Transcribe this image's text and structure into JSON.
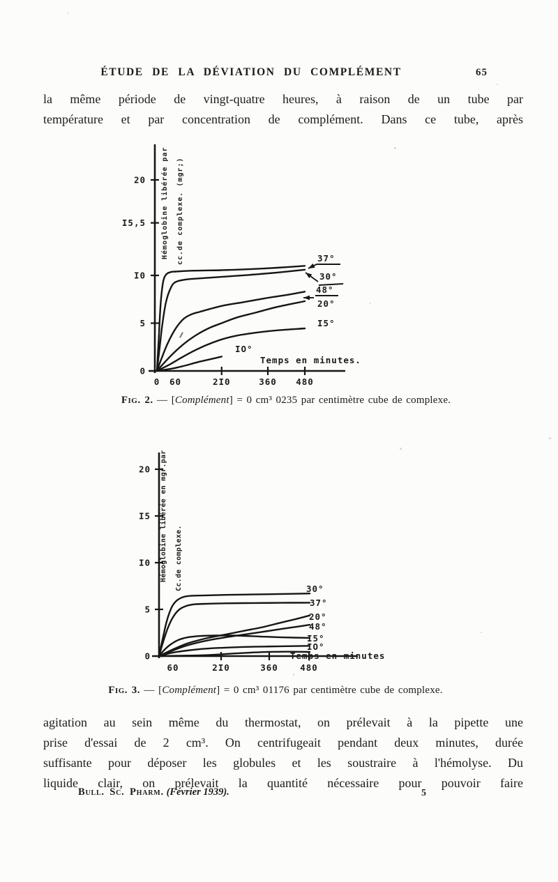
{
  "page": {
    "header": {
      "title": "ÉTUDE DE LA DÉVIATION DU COMPLÉMENT",
      "page_number": "65"
    },
    "paragraph_top": {
      "lines": [
        "la même période de vingt-quatre heures, à raison de un tube par",
        "température et par concentration de complément. Dans ce tube, après"
      ]
    },
    "figure2_caption": {
      "fig_label": "Fig. 2.",
      "pre": " — [",
      "italic_word": "Complément",
      "post": "] = 0 cm³ 0235 par centimètre cube de complexe."
    },
    "figure3_caption": {
      "fig_label": "Fig. 3.",
      "pre": " — [",
      "italic_word": "Complément",
      "post": "] = 0 cm³ 01176 par centimètre cube de complexe."
    },
    "paragraph_bottom": {
      "lines": [
        "agitation au sein même du thermostat, on prélevait à la pipette une",
        "prise d'essai de 2 cm³. On centrifugeait pendant deux minutes, durée",
        "suffisante pour déposer les globules et les soustraire à l'hémolyse. Du",
        "liquide clair, on prélevait la quantité nécessaire pour pouvoir faire"
      ]
    },
    "footer": {
      "journal": "Bull. Sc. Pharm.",
      "issue": "(Février 1939).",
      "page_number": "5"
    }
  },
  "ink_color": "#161616",
  "chart_data": [
    {
      "type": "line",
      "figure": "Fig. 2",
      "ylabel_lines": [
        "Hémoglobine libérée par",
        "cc.de complexe. (mgr;)"
      ],
      "xlabel": "Temps en minutes.",
      "xlim": [
        0,
        480
      ],
      "ylim": [
        0,
        22
      ],
      "grid": false,
      "legend_position": "labels-at-curve-ends",
      "yticks": [
        {
          "label": "20",
          "value": 20
        },
        {
          "label": "I5,5",
          "value": 15.5
        },
        {
          "label": "I0",
          "value": 10
        },
        {
          "label": "5",
          "value": 5
        },
        {
          "label": "0",
          "value": 0
        }
      ],
      "xticks": [
        {
          "label": "0",
          "value": 0,
          "mark": false
        },
        {
          "label": "60",
          "value": 60,
          "mark": false
        },
        {
          "label": "2I0",
          "value": 210,
          "mark": true
        },
        {
          "label": "360",
          "value": 360,
          "mark": true
        },
        {
          "label": "480",
          "value": 480,
          "mark": true
        }
      ],
      "series": [
        {
          "name": "37°",
          "points": [
            [
              0,
              0
            ],
            [
              6,
              3.5
            ],
            [
              12,
              7.0
            ],
            [
              20,
              9.3
            ],
            [
              30,
              10.1
            ],
            [
              45,
              10.35
            ],
            [
              60,
              10.4
            ],
            [
              120,
              10.5
            ],
            [
              210,
              10.55
            ],
            [
              300,
              10.65
            ],
            [
              390,
              10.8
            ],
            [
              480,
              11.0
            ]
          ]
        },
        {
          "name": "30°",
          "points": [
            [
              0,
              0
            ],
            [
              8,
              2.2
            ],
            [
              18,
              5.0
            ],
            [
              30,
              7.3
            ],
            [
              45,
              8.7
            ],
            [
              60,
              9.3
            ],
            [
              90,
              9.55
            ],
            [
              120,
              9.65
            ],
            [
              210,
              9.85
            ],
            [
              300,
              10.05
            ],
            [
              390,
              10.3
            ],
            [
              480,
              10.6
            ]
          ]
        },
        {
          "name": "48°",
          "points": [
            [
              0,
              0
            ],
            [
              15,
              1.3
            ],
            [
              35,
              2.9
            ],
            [
              60,
              4.4
            ],
            [
              85,
              5.4
            ],
            [
              110,
              5.9
            ],
            [
              140,
              6.2
            ],
            [
              210,
              6.8
            ],
            [
              280,
              7.2
            ],
            [
              350,
              7.6
            ],
            [
              420,
              7.95
            ],
            [
              480,
              8.3
            ]
          ]
        },
        {
          "name": "20°",
          "points": [
            [
              0,
              0
            ],
            [
              25,
              0.9
            ],
            [
              55,
              1.9
            ],
            [
              90,
              2.9
            ],
            [
              130,
              3.8
            ],
            [
              170,
              4.5
            ],
            [
              210,
              5.0
            ],
            [
              260,
              5.6
            ],
            [
              320,
              6.1
            ],
            [
              390,
              6.7
            ],
            [
              480,
              7.3
            ]
          ]
        },
        {
          "name": "I5°",
          "points": [
            [
              0,
              0
            ],
            [
              40,
              0.65
            ],
            [
              80,
              1.4
            ],
            [
              120,
              2.1
            ],
            [
              160,
              2.7
            ],
            [
              210,
              3.3
            ],
            [
              260,
              3.7
            ],
            [
              320,
              4.0
            ],
            [
              390,
              4.25
            ],
            [
              480,
              4.45
            ]
          ]
        },
        {
          "name": "IO°",
          "points": [
            [
              0,
              0
            ],
            [
              50,
              0.25
            ],
            [
              90,
              0.55
            ],
            [
              130,
              0.9
            ],
            [
              170,
              1.2
            ],
            [
              210,
              1.5
            ]
          ]
        }
      ]
    },
    {
      "type": "line",
      "figure": "Fig. 3",
      "ylabel_lines": [
        "Hémoglobine libérée en mgr.par",
        "Cc.de complexe."
      ],
      "xlabel": "Temps en minutes",
      "xlim": [
        0,
        480
      ],
      "ylim": [
        0,
        22
      ],
      "grid": false,
      "legend_position": "labels-at-curve-ends",
      "yticks": [
        {
          "label": "20",
          "value": 20
        },
        {
          "label": "I5",
          "value": 15
        },
        {
          "label": "I0",
          "value": 10
        },
        {
          "label": "5",
          "value": 5
        },
        {
          "label": "0",
          "value": 0
        }
      ],
      "xticks": [
        {
          "label": "60",
          "value": 60,
          "mark": false,
          "lx": 70
        },
        {
          "label": "2I0",
          "value": 210,
          "mark": true,
          "lx": 139
        },
        {
          "label": "360",
          "value": 360,
          "mark": true,
          "lx": 208
        },
        {
          "label": "480",
          "value": 480,
          "mark": true,
          "lx": 265
        }
      ],
      "series": [
        {
          "name": "30°",
          "points": [
            [
              0,
              0
            ],
            [
              12,
              1.9
            ],
            [
              25,
              3.8
            ],
            [
              40,
              5.2
            ],
            [
              55,
              5.9
            ],
            [
              75,
              6.3
            ],
            [
              100,
              6.45
            ],
            [
              150,
              6.5
            ],
            [
              210,
              6.55
            ],
            [
              300,
              6.6
            ],
            [
              390,
              6.65
            ],
            [
              480,
              6.7
            ]
          ]
        },
        {
          "name": "37°",
          "points": [
            [
              0,
              0
            ],
            [
              12,
              1.4
            ],
            [
              28,
              3.0
            ],
            [
              45,
              4.2
            ],
            [
              65,
              5.0
            ],
            [
              90,
              5.4
            ],
            [
              115,
              5.55
            ],
            [
              150,
              5.6
            ],
            [
              210,
              5.65
            ],
            [
              300,
              5.68
            ],
            [
              390,
              5.7
            ],
            [
              480,
              5.72
            ]
          ]
        },
        {
          "name": "20°",
          "points": [
            [
              0,
              0
            ],
            [
              40,
              0.65
            ],
            [
              90,
              1.35
            ],
            [
              150,
              1.9
            ],
            [
              210,
              2.3
            ],
            [
              270,
              2.7
            ],
            [
              330,
              3.1
            ],
            [
              390,
              3.6
            ],
            [
              440,
              4.0
            ],
            [
              480,
              4.35
            ]
          ]
        },
        {
          "name": "48°",
          "points": [
            [
              0,
              0
            ],
            [
              40,
              0.55
            ],
            [
              90,
              1.15
            ],
            [
              150,
              1.65
            ],
            [
              210,
              2.0
            ],
            [
              270,
              2.3
            ],
            [
              330,
              2.6
            ],
            [
              390,
              2.9
            ],
            [
              440,
              3.15
            ],
            [
              480,
              3.35
            ]
          ]
        },
        {
          "name": "I5°",
          "points": [
            [
              0,
              0
            ],
            [
              15,
              0.6
            ],
            [
              35,
              1.2
            ],
            [
              60,
              1.7
            ],
            [
              90,
              2.0
            ],
            [
              130,
              2.15
            ],
            [
              180,
              2.2
            ],
            [
              240,
              2.2
            ],
            [
              320,
              2.1
            ],
            [
              400,
              2.0
            ],
            [
              480,
              1.95
            ]
          ]
        },
        {
          "name": "IO°",
          "points": [
            [
              0,
              0
            ],
            [
              40,
              0.35
            ],
            [
              90,
              0.6
            ],
            [
              150,
              0.8
            ],
            [
              210,
              0.9
            ],
            [
              300,
              1.0
            ],
            [
              390,
              1.05
            ],
            [
              480,
              1.1
            ]
          ]
        },
        {
          "name": "",
          "points": [
            [
              0,
              0
            ],
            [
              80,
              0.05
            ],
            [
              160,
              0.12
            ],
            [
              240,
              0.28
            ],
            [
              320,
              0.42
            ],
            [
              400,
              0.47
            ],
            [
              480,
              0.45
            ]
          ]
        }
      ]
    }
  ]
}
